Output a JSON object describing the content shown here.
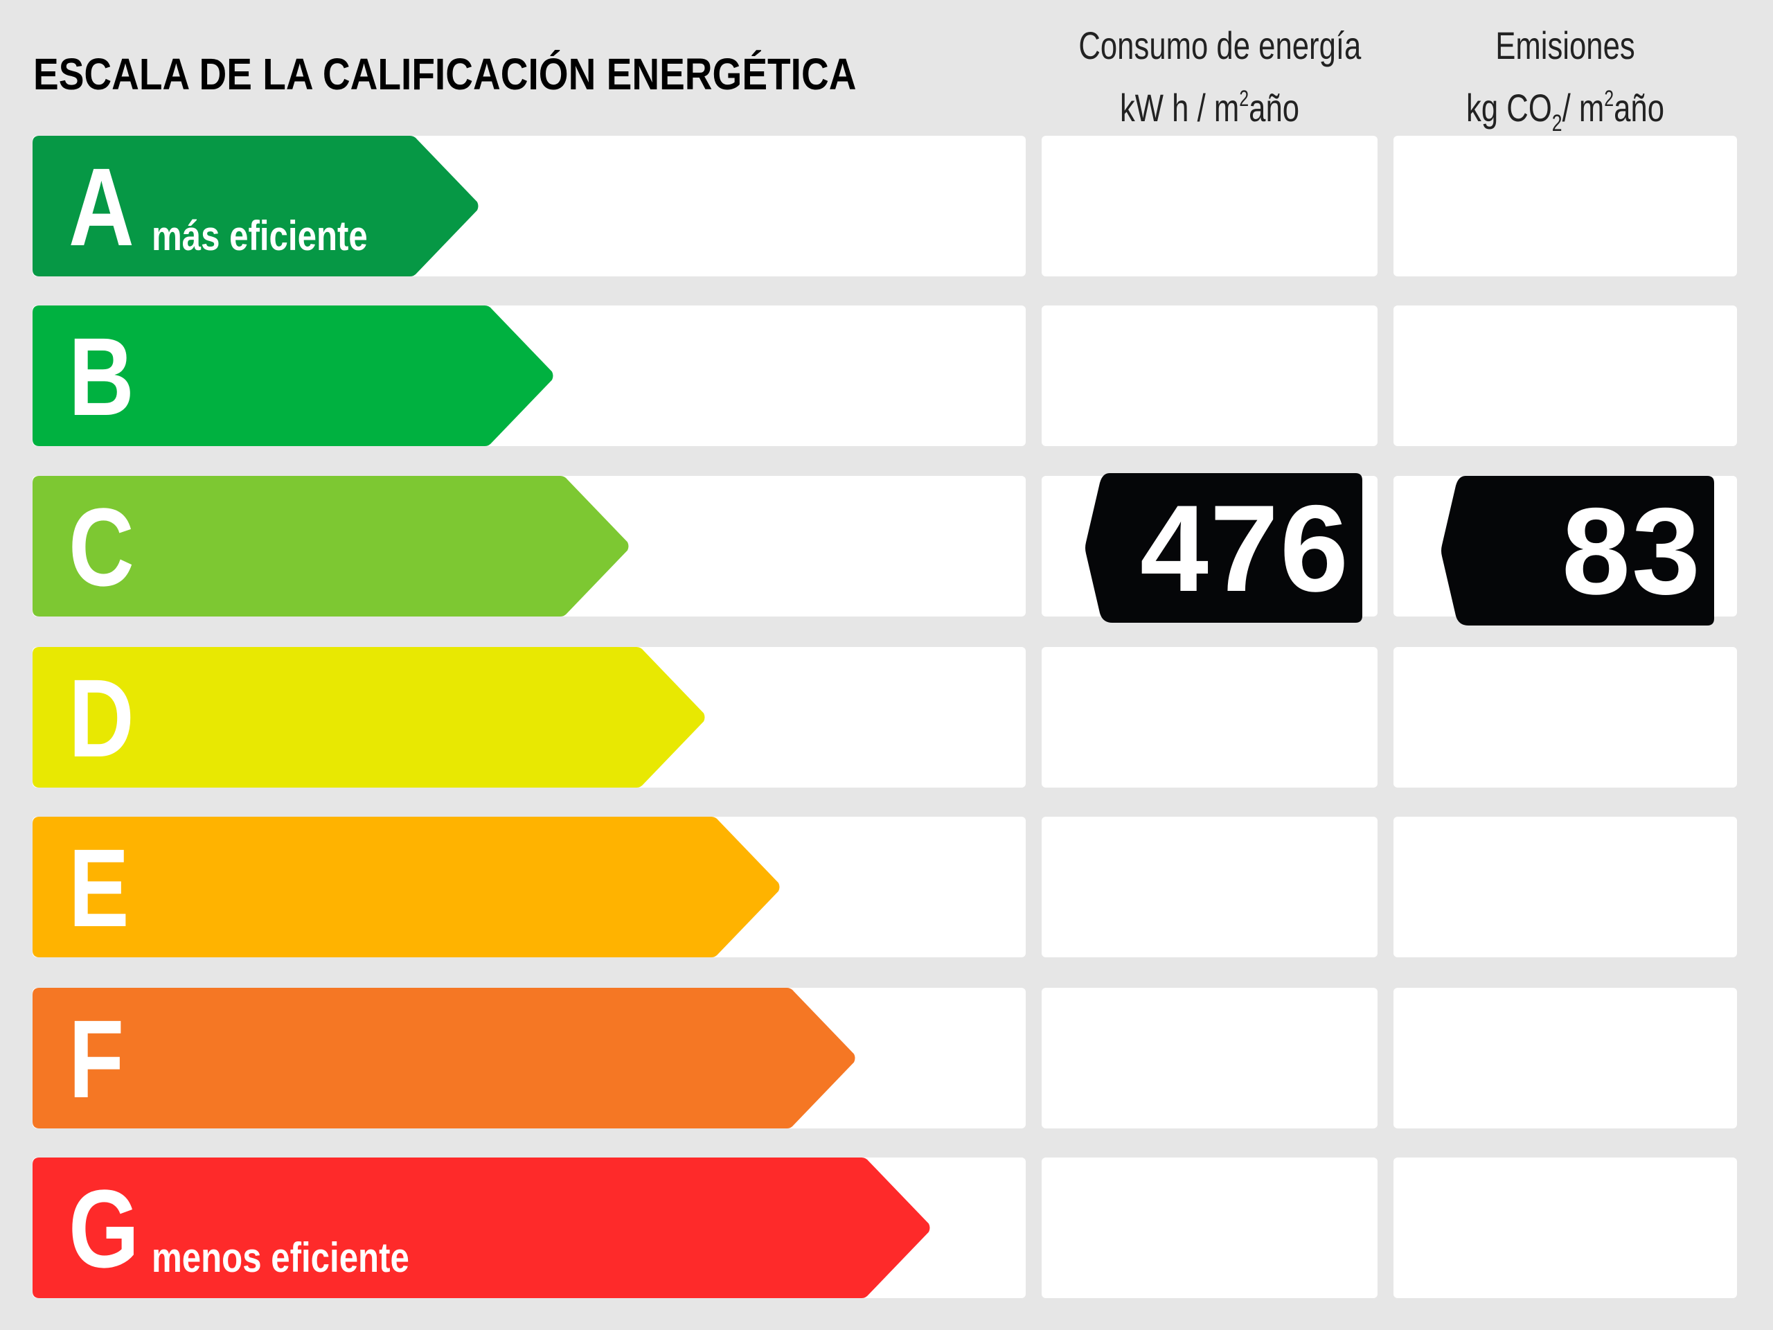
{
  "title": "ESCALA DE LA CALIFICACIÓN ENERGÉTICA",
  "columns": {
    "consumo": {
      "line1": "Consumo de energía",
      "line2_pre": "kW h / m",
      "line2_sup": "2",
      "line2_post": "año"
    },
    "emisiones": {
      "line1": "Emisiones",
      "line2_pre": "kg CO",
      "line2_sub": "2",
      "line2_mid": "/ m",
      "line2_sup": "2",
      "line2_post": "año"
    }
  },
  "ratings": [
    {
      "letter": "A",
      "sublabel": "más eficiente",
      "color": "#069845"
    },
    {
      "letter": "B",
      "sublabel": "",
      "color": "#00b140"
    },
    {
      "letter": "C",
      "sublabel": "",
      "color": "#7dc832"
    },
    {
      "letter": "D",
      "sublabel": "",
      "color": "#e8e802"
    },
    {
      "letter": "E",
      "sublabel": "",
      "color": "#ffb300"
    },
    {
      "letter": "F",
      "sublabel": "",
      "color": "#f57724"
    },
    {
      "letter": "G",
      "sublabel": "menos eficiente",
      "color": "#fe2a2a"
    }
  ],
  "result": {
    "rating": "C",
    "consumo_value": "476",
    "emisiones_value": "83"
  },
  "chart_data": {
    "type": "bar",
    "title": "ESCALA DE LA CALIFICACIÓN ENERGÉTICA",
    "categories": [
      "A",
      "B",
      "C",
      "D",
      "E",
      "F",
      "G"
    ],
    "category_labels": {
      "A": "más eficiente",
      "G": "menos eficiente"
    },
    "values": [
      1,
      2,
      3,
      4,
      5,
      6,
      7
    ],
    "colors": [
      "#069845",
      "#00b140",
      "#7dc832",
      "#e8e802",
      "#ffb300",
      "#f57724",
      "#fe2a2a"
    ],
    "series": [
      {
        "name": "Consumo de energía kW h / m²año",
        "rating": "C",
        "value": 476
      },
      {
        "name": "Emisiones kg CO₂/ m²año",
        "rating": "C",
        "value": 83
      }
    ],
    "xlabel": "",
    "ylabel": "",
    "grid": false,
    "legend": "none"
  }
}
